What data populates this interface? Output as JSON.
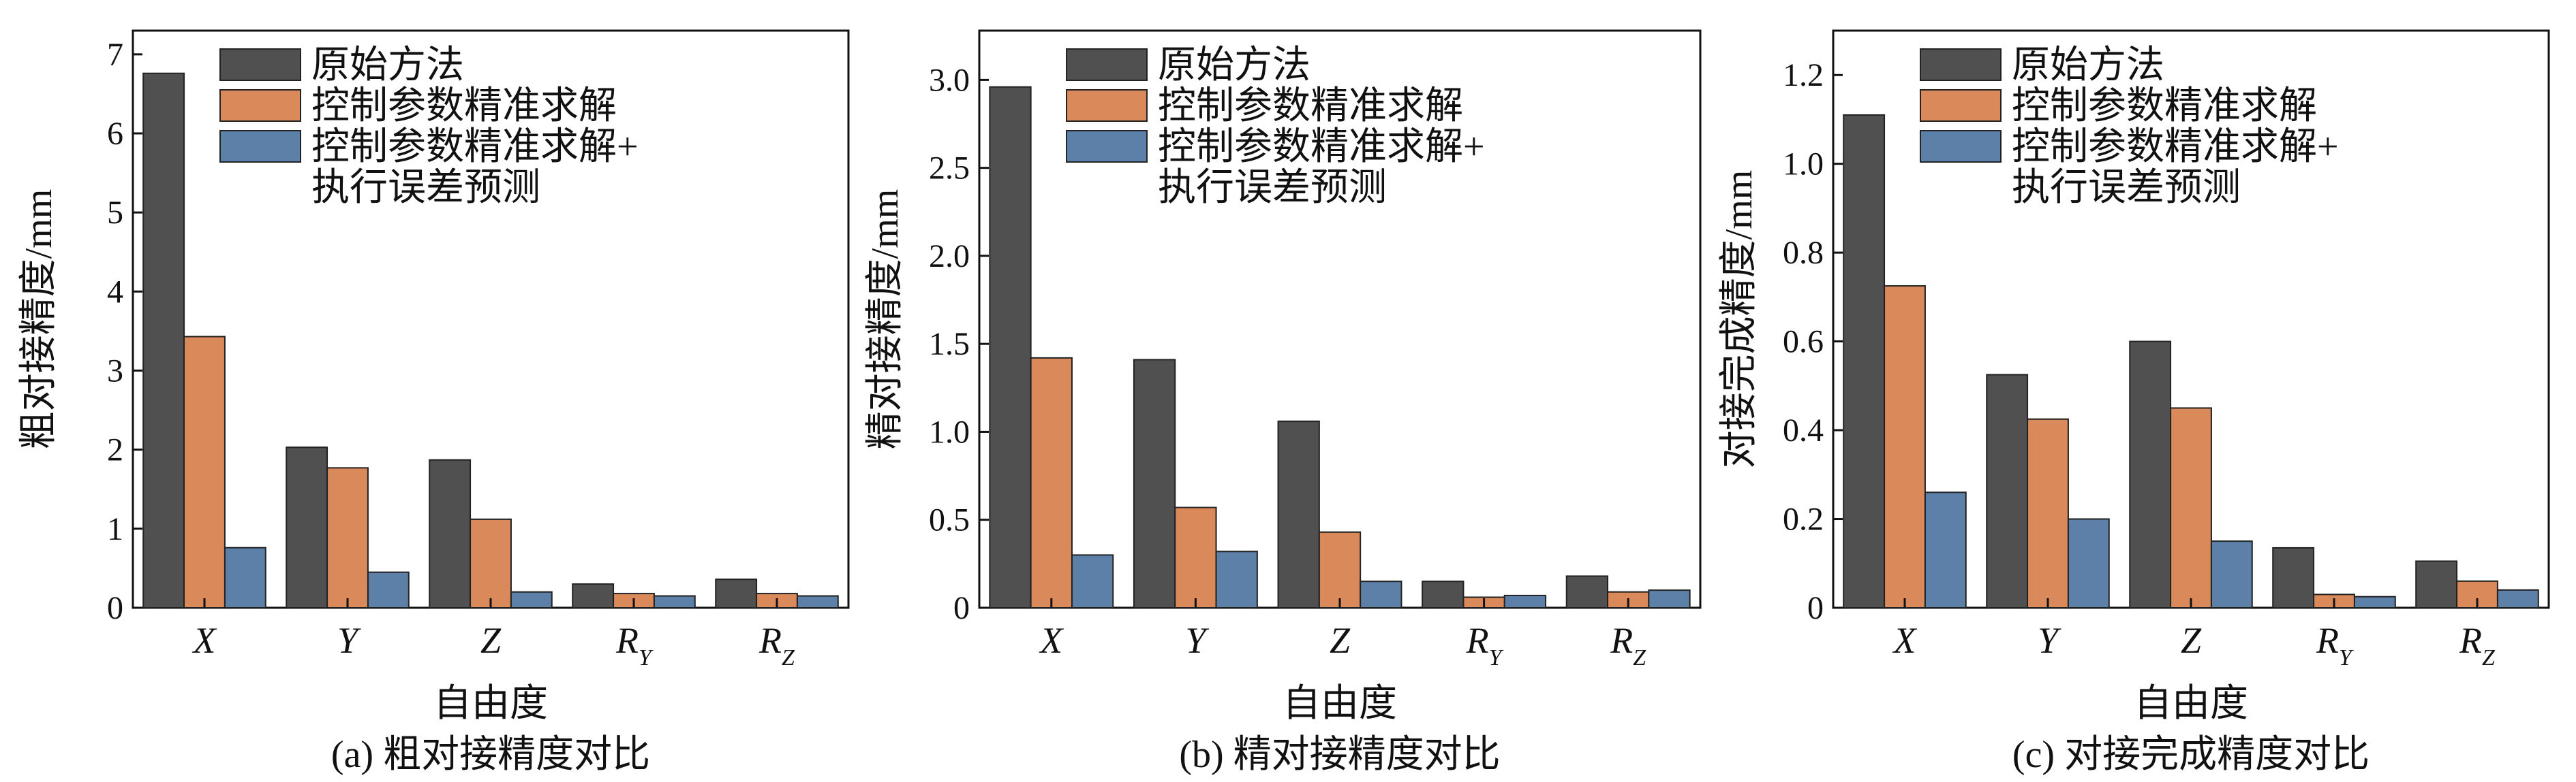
{
  "colors": {
    "series": [
      "#505050",
      "#d9895a",
      "#5d80a8"
    ],
    "edge": "#222222"
  },
  "chart_data": [
    {
      "type": "bar",
      "panel_label": "(a) 粗对接精度对比",
      "xlabel": "自由度",
      "ylabel": "粗对接精度/mm",
      "ylim": [
        0,
        7.3
      ],
      "yticks": [
        0,
        1,
        2,
        3,
        4,
        5,
        6,
        7
      ],
      "ytick_labels": [
        "0",
        "1",
        "2",
        "3",
        "4",
        "5",
        "6",
        "7"
      ],
      "categories": [
        {
          "main": "X",
          "sub": ""
        },
        {
          "main": "Y",
          "sub": ""
        },
        {
          "main": "Z",
          "sub": ""
        },
        {
          "main": "R",
          "sub": "Y"
        },
        {
          "main": "R",
          "sub": "Z"
        }
      ],
      "legend": {
        "position": "top-right",
        "lines": [
          [
            "原始方法"
          ],
          [
            "控制参数精准求解"
          ],
          [
            "控制参数精准求解+",
            "执行误差预测"
          ]
        ]
      },
      "series": [
        {
          "values": [
            6.76,
            2.03,
            1.87,
            0.3,
            0.36
          ]
        },
        {
          "values": [
            3.43,
            1.77,
            1.12,
            0.18,
            0.18
          ]
        },
        {
          "values": [
            0.76,
            0.45,
            0.2,
            0.15,
            0.15
          ]
        }
      ]
    },
    {
      "type": "bar",
      "panel_label": "(b) 精对接精度对比",
      "xlabel": "自由度",
      "ylabel": "精对接精度/mm",
      "ylim": [
        0,
        3.28
      ],
      "yticks": [
        0,
        0.5,
        1.0,
        1.5,
        2.0,
        2.5,
        3.0
      ],
      "ytick_labels": [
        "0",
        "0.5",
        "1.0",
        "1.5",
        "2.0",
        "2.5",
        "3.0"
      ],
      "categories": [
        {
          "main": "X",
          "sub": ""
        },
        {
          "main": "Y",
          "sub": ""
        },
        {
          "main": "Z",
          "sub": ""
        },
        {
          "main": "R",
          "sub": "Y"
        },
        {
          "main": "R",
          "sub": "Z"
        }
      ],
      "legend": {
        "position": "top-right",
        "lines": [
          [
            "原始方法"
          ],
          [
            "控制参数精准求解"
          ],
          [
            "控制参数精准求解+",
            "执行误差预测"
          ]
        ]
      },
      "series": [
        {
          "values": [
            2.96,
            1.41,
            1.06,
            0.15,
            0.18
          ]
        },
        {
          "values": [
            1.42,
            0.57,
            0.43,
            0.06,
            0.09
          ]
        },
        {
          "values": [
            0.3,
            0.32,
            0.15,
            0.07,
            0.1
          ]
        }
      ]
    },
    {
      "type": "bar",
      "panel_label": "(c) 对接完成精度对比",
      "xlabel": "自由度",
      "ylabel": "对接完成精度/mm",
      "ylim": [
        0,
        1.3
      ],
      "yticks": [
        0,
        0.2,
        0.4,
        0.6,
        0.8,
        1.0,
        1.2
      ],
      "ytick_labels": [
        "0",
        "0.2",
        "0.4",
        "0.6",
        "0.8",
        "1.0",
        "1.2"
      ],
      "categories": [
        {
          "main": "X",
          "sub": ""
        },
        {
          "main": "Y",
          "sub": ""
        },
        {
          "main": "Z",
          "sub": ""
        },
        {
          "main": "R",
          "sub": "Y"
        },
        {
          "main": "R",
          "sub": "Z"
        }
      ],
      "legend": {
        "position": "top-right",
        "lines": [
          [
            "原始方法"
          ],
          [
            "控制参数精准求解"
          ],
          [
            "控制参数精准求解+",
            "执行误差预测"
          ]
        ]
      },
      "series": [
        {
          "values": [
            1.11,
            0.525,
            0.6,
            0.135,
            0.105
          ]
        },
        {
          "values": [
            0.725,
            0.425,
            0.45,
            0.03,
            0.06
          ]
        },
        {
          "values": [
            0.26,
            0.2,
            0.15,
            0.025,
            0.04
          ]
        }
      ]
    }
  ]
}
